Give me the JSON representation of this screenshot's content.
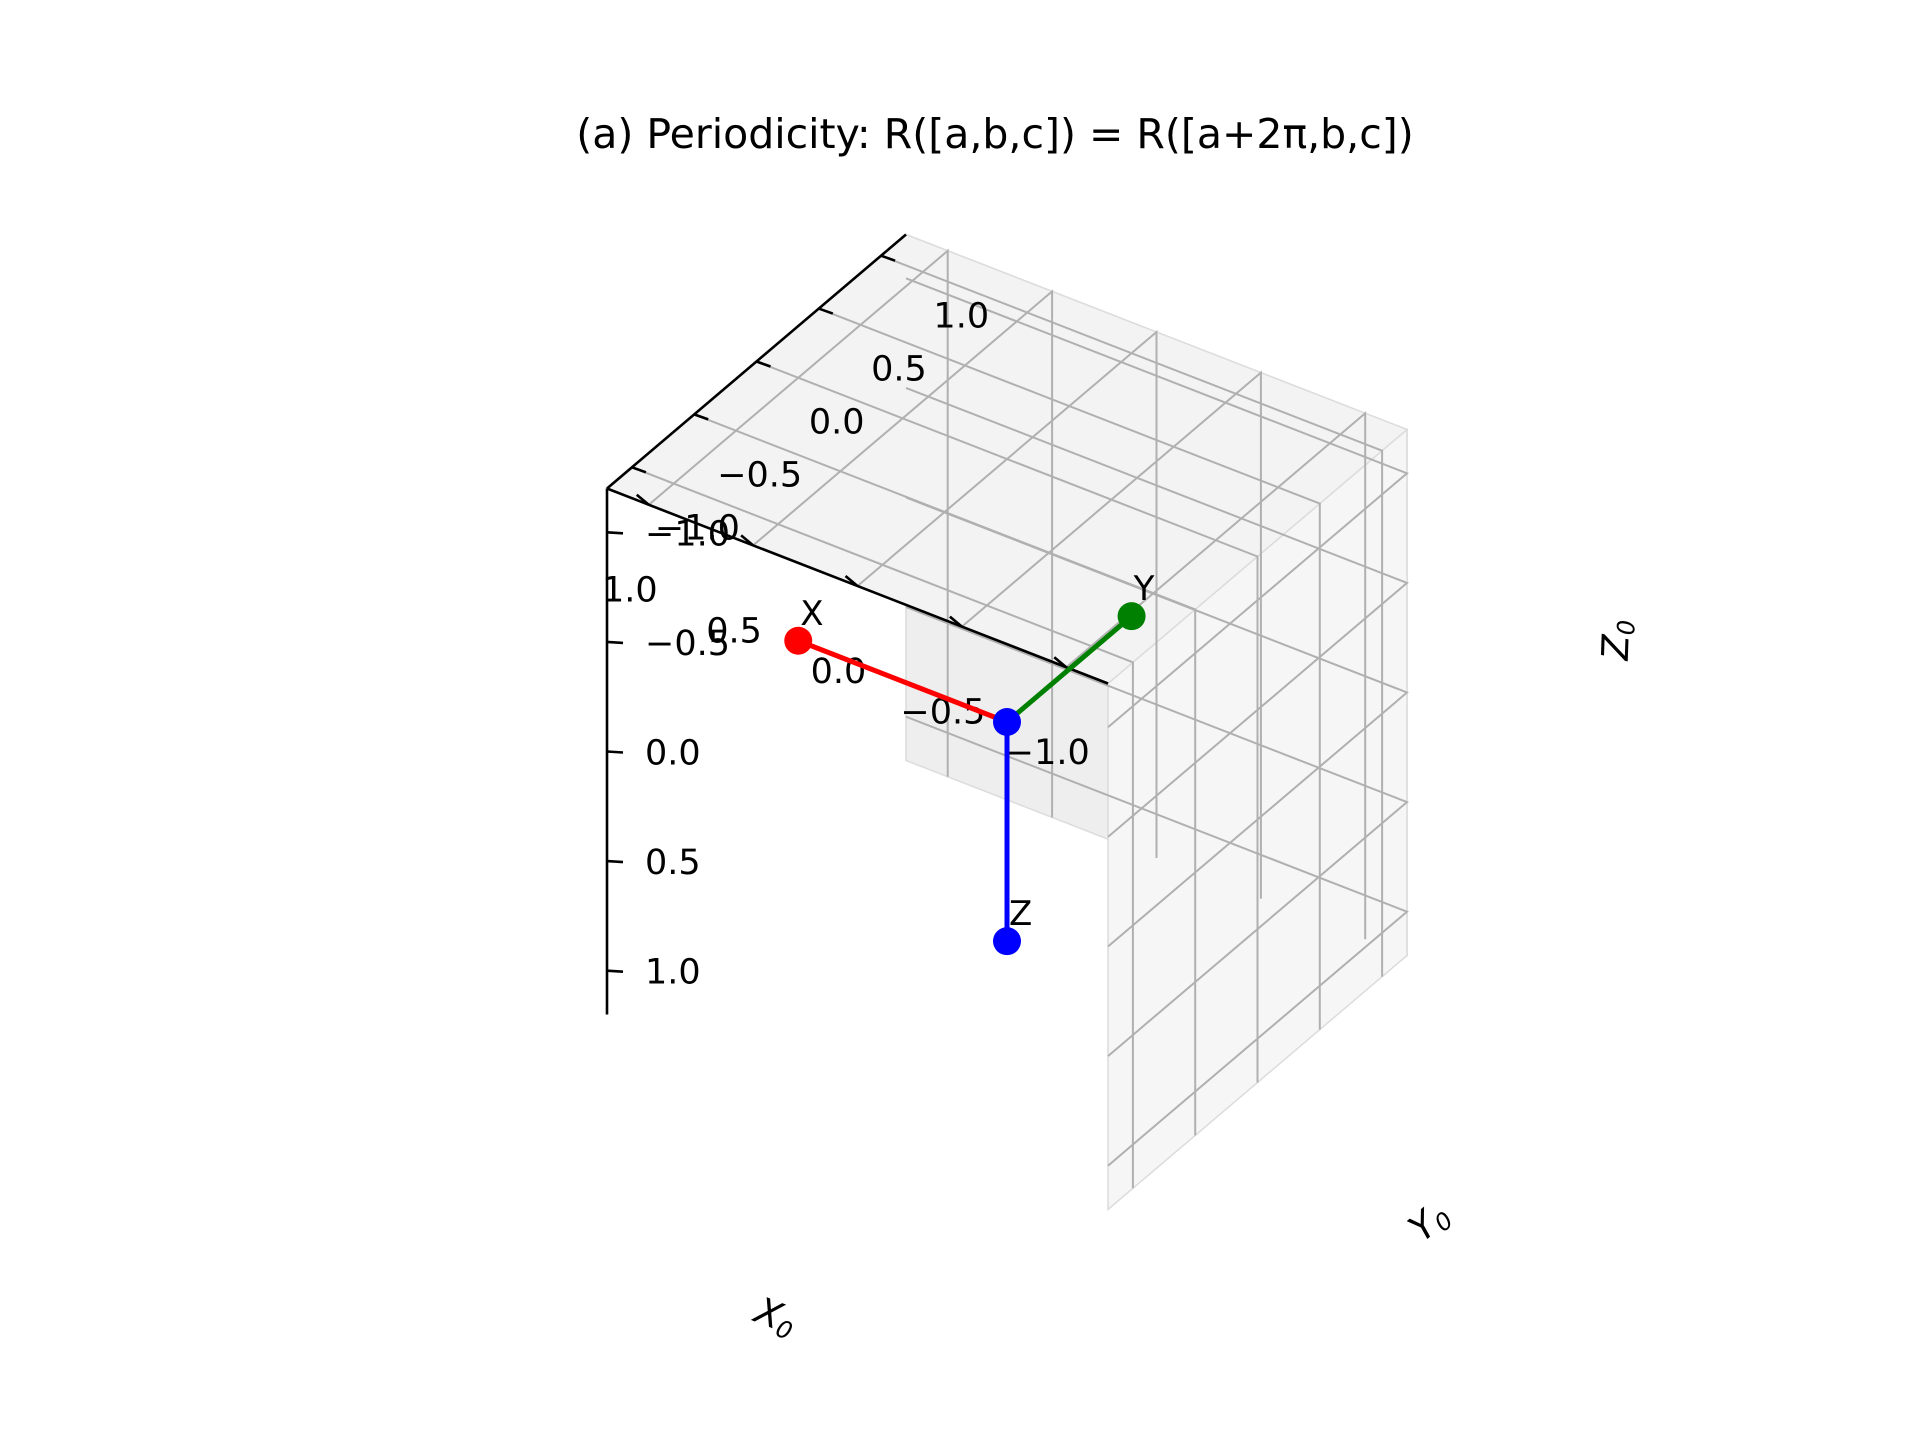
{
  "chart_data": {
    "type": "scatter",
    "title": "(a) Periodicity: R([a,b,c]) = R([a+2π,b,c])",
    "axes": {
      "x": {
        "label": "X",
        "label_subscript": "0",
        "range": [
          -1.2,
          1.2
        ],
        "ticks": [
          -1.0,
          -0.5,
          0.0,
          0.5,
          1.0
        ],
        "tick_labels": [
          "−1.0",
          "−0.5",
          "0.0",
          "0.5",
          "1.0"
        ]
      },
      "y": {
        "label": "Y",
        "label_subscript": "0",
        "range": [
          -1.2,
          1.2
        ],
        "ticks": [
          -1.0,
          -0.5,
          0.0,
          0.5,
          1.0
        ],
        "tick_labels": [
          "−1.0",
          "−0.5",
          "0.0",
          "0.5",
          "1.0"
        ]
      },
      "z": {
        "label": "Z",
        "label_subscript": "0",
        "range": [
          -1.2,
          1.2
        ],
        "ticks": [
          -1.0,
          -0.5,
          0.0,
          0.5,
          1.0
        ],
        "tick_labels": [
          "−1.0",
          "−0.5",
          "0.0",
          "0.5",
          "1.0"
        ]
      }
    },
    "grid": true,
    "origin": {
      "x": 0,
      "y": 0,
      "z": 0,
      "color": "#0000ff"
    },
    "series": [
      {
        "name": "X",
        "color": "#ff0000",
        "from": [
          0,
          0,
          0
        ],
        "to": [
          1,
          0,
          0
        ]
      },
      {
        "name": "Y",
        "color": "#008000",
        "from": [
          0,
          0,
          0
        ],
        "to": [
          0,
          1,
          0
        ]
      },
      {
        "name": "Z",
        "color": "#0000ff",
        "from": [
          0,
          0,
          0
        ],
        "to": [
          0,
          0,
          1
        ]
      }
    ]
  }
}
